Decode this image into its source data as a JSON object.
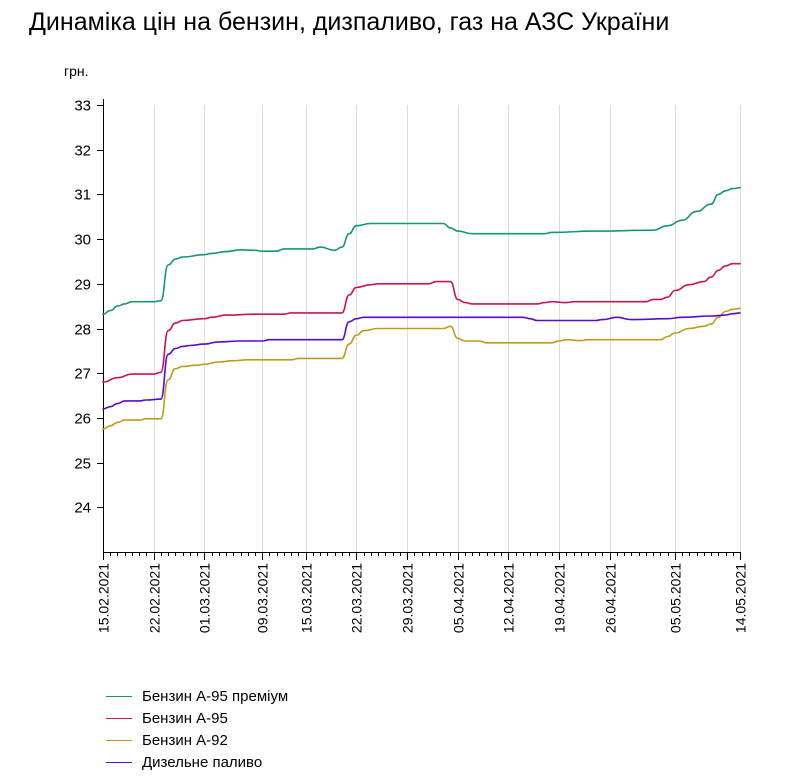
{
  "title": "Динаміка цін на бензин, дизпаливо, газ на АЗС України",
  "chart_data": {
    "type": "line",
    "title": "Динаміка цін на бензин, дизпаливо, газ на АЗС України",
    "ylabel": "грн.",
    "xlabel": "",
    "ylim": [
      23,
      33
    ],
    "xlim": [
      "2021-02-15",
      "2021-05-14"
    ],
    "yticks": [
      24,
      25,
      26,
      27,
      28,
      29,
      30,
      31,
      32,
      33
    ],
    "xticks": [
      "15.02.2021",
      "22.02.2021",
      "01.03.2021",
      "09.03.2021",
      "15.03.2021",
      "22.03.2021",
      "29.03.2021",
      "05.04.2021",
      "12.04.2021",
      "19.04.2021",
      "26.04.2021",
      "05.05.2021",
      "14.05.2021"
    ],
    "grid": "vertical",
    "legend": "bottom-left",
    "series": [
      {
        "name": "Бензин А-95 преміум",
        "color": "#14967a",
        "points": [
          [
            "2021-02-15",
            28.32
          ],
          [
            "2021-02-16",
            28.4
          ],
          [
            "2021-02-17",
            28.5
          ],
          [
            "2021-02-18",
            28.55
          ],
          [
            "2021-02-19",
            28.6
          ],
          [
            "2021-02-22",
            28.6
          ],
          [
            "2021-02-23",
            28.62
          ],
          [
            "2021-02-24",
            29.42
          ],
          [
            "2021-02-25",
            29.55
          ],
          [
            "2021-02-26",
            29.6
          ],
          [
            "2021-03-01",
            29.65
          ],
          [
            "2021-03-02",
            29.68
          ],
          [
            "2021-03-04",
            29.72
          ],
          [
            "2021-03-06",
            29.76
          ],
          [
            "2021-03-08",
            29.75
          ],
          [
            "2021-03-09",
            29.73
          ],
          [
            "2021-03-11",
            29.73
          ],
          [
            "2021-03-12",
            29.78
          ],
          [
            "2021-03-16",
            29.78
          ],
          [
            "2021-03-17",
            29.82
          ],
          [
            "2021-03-19",
            29.75
          ],
          [
            "2021-03-20",
            29.82
          ],
          [
            "2021-03-21",
            30.12
          ],
          [
            "2021-03-22",
            30.3
          ],
          [
            "2021-03-24",
            30.35
          ],
          [
            "2021-04-03",
            30.35
          ],
          [
            "2021-04-04",
            30.25
          ],
          [
            "2021-04-05",
            30.18
          ],
          [
            "2021-04-07",
            30.12
          ],
          [
            "2021-04-17",
            30.12
          ],
          [
            "2021-04-18",
            30.15
          ],
          [
            "2021-04-24",
            30.18
          ],
          [
            "2021-05-02",
            30.2
          ],
          [
            "2021-05-04",
            30.3
          ],
          [
            "2021-05-06",
            30.42
          ],
          [
            "2021-05-08",
            30.62
          ],
          [
            "2021-05-10",
            30.78
          ],
          [
            "2021-05-11",
            31.0
          ],
          [
            "2021-05-12",
            31.08
          ],
          [
            "2021-05-13",
            31.13
          ],
          [
            "2021-05-14",
            31.15
          ]
        ]
      },
      {
        "name": "Бензин А-95",
        "color": "#c8145a",
        "points": [
          [
            "2021-02-15",
            26.8
          ],
          [
            "2021-02-17",
            26.9
          ],
          [
            "2021-02-19",
            26.98
          ],
          [
            "2021-02-22",
            26.98
          ],
          [
            "2021-02-23",
            27.02
          ],
          [
            "2021-02-24",
            27.95
          ],
          [
            "2021-02-25",
            28.12
          ],
          [
            "2021-02-26",
            28.18
          ],
          [
            "2021-03-01",
            28.22
          ],
          [
            "2021-03-02",
            28.25
          ],
          [
            "2021-03-04",
            28.3
          ],
          [
            "2021-03-08",
            28.32
          ],
          [
            "2021-03-12",
            28.32
          ],
          [
            "2021-03-13",
            28.35
          ],
          [
            "2021-03-20",
            28.35
          ],
          [
            "2021-03-21",
            28.75
          ],
          [
            "2021-03-22",
            28.92
          ],
          [
            "2021-03-24",
            28.98
          ],
          [
            "2021-03-25",
            29.0
          ],
          [
            "2021-04-01",
            29.0
          ],
          [
            "2021-04-02",
            29.05
          ],
          [
            "2021-04-04",
            29.05
          ],
          [
            "2021-04-05",
            28.65
          ],
          [
            "2021-04-06",
            28.58
          ],
          [
            "2021-04-07",
            28.55
          ],
          [
            "2021-04-16",
            28.55
          ],
          [
            "2021-04-17",
            28.58
          ],
          [
            "2021-04-18",
            28.6
          ],
          [
            "2021-04-20",
            28.58
          ],
          [
            "2021-04-21",
            28.6
          ],
          [
            "2021-05-01",
            28.6
          ],
          [
            "2021-05-02",
            28.65
          ],
          [
            "2021-05-03",
            28.65
          ],
          [
            "2021-05-04",
            28.7
          ],
          [
            "2021-05-05",
            28.85
          ],
          [
            "2021-05-07",
            28.98
          ],
          [
            "2021-05-09",
            29.05
          ],
          [
            "2021-05-10",
            29.15
          ],
          [
            "2021-05-11",
            29.3
          ],
          [
            "2021-05-12",
            29.4
          ],
          [
            "2021-05-13",
            29.45
          ],
          [
            "2021-05-14",
            29.45
          ]
        ]
      },
      {
        "name": "Бензин А-92",
        "color": "#c09a1c",
        "points": [
          [
            "2021-02-15",
            25.75
          ],
          [
            "2021-02-16",
            25.82
          ],
          [
            "2021-02-17",
            25.9
          ],
          [
            "2021-02-18",
            25.95
          ],
          [
            "2021-02-20",
            25.95
          ],
          [
            "2021-02-21",
            25.98
          ],
          [
            "2021-02-23",
            25.98
          ],
          [
            "2021-02-24",
            26.85
          ],
          [
            "2021-02-25",
            27.1
          ],
          [
            "2021-02-26",
            27.15
          ],
          [
            "2021-02-28",
            27.18
          ],
          [
            "2021-03-01",
            27.2
          ],
          [
            "2021-03-03",
            27.25
          ],
          [
            "2021-03-05",
            27.28
          ],
          [
            "2021-03-07",
            27.3
          ],
          [
            "2021-03-13",
            27.3
          ],
          [
            "2021-03-14",
            27.33
          ],
          [
            "2021-03-20",
            27.33
          ],
          [
            "2021-03-21",
            27.65
          ],
          [
            "2021-03-22",
            27.85
          ],
          [
            "2021-03-23",
            27.95
          ],
          [
            "2021-03-25",
            28.0
          ],
          [
            "2021-04-03",
            28.0
          ],
          [
            "2021-04-04",
            28.05
          ],
          [
            "2021-04-05",
            27.78
          ],
          [
            "2021-04-06",
            27.72
          ],
          [
            "2021-04-08",
            27.72
          ],
          [
            "2021-04-09",
            27.68
          ],
          [
            "2021-04-18",
            27.68
          ],
          [
            "2021-04-19",
            27.72
          ],
          [
            "2021-04-20",
            27.75
          ],
          [
            "2021-04-22",
            27.73
          ],
          [
            "2021-04-23",
            27.75
          ],
          [
            "2021-05-03",
            27.75
          ],
          [
            "2021-05-04",
            27.82
          ],
          [
            "2021-05-05",
            27.9
          ],
          [
            "2021-05-07",
            28.0
          ],
          [
            "2021-05-09",
            28.05
          ],
          [
            "2021-05-10",
            28.1
          ],
          [
            "2021-05-11",
            28.25
          ],
          [
            "2021-05-12",
            28.38
          ],
          [
            "2021-05-13",
            28.43
          ],
          [
            "2021-05-14",
            28.45
          ]
        ]
      },
      {
        "name": "Дизельне паливо",
        "color": "#5a0ac8",
        "points": [
          [
            "2021-02-15",
            26.2
          ],
          [
            "2021-02-16",
            26.25
          ],
          [
            "2021-02-17",
            26.32
          ],
          [
            "2021-02-18",
            26.38
          ],
          [
            "2021-02-20",
            26.38
          ],
          [
            "2021-02-21",
            26.4
          ],
          [
            "2021-02-23",
            26.42
          ],
          [
            "2021-02-24",
            27.42
          ],
          [
            "2021-02-25",
            27.55
          ],
          [
            "2021-02-26",
            27.6
          ],
          [
            "2021-02-27",
            27.62
          ],
          [
            "2021-03-01",
            27.65
          ],
          [
            "2021-03-03",
            27.7
          ],
          [
            "2021-03-06",
            27.72
          ],
          [
            "2021-03-09",
            27.72
          ],
          [
            "2021-03-10",
            27.75
          ],
          [
            "2021-03-20",
            27.75
          ],
          [
            "2021-03-21",
            28.15
          ],
          [
            "2021-03-22",
            28.22
          ],
          [
            "2021-03-23",
            28.25
          ],
          [
            "2021-04-14",
            28.25
          ],
          [
            "2021-04-15",
            28.22
          ],
          [
            "2021-04-16",
            28.18
          ],
          [
            "2021-04-24",
            28.18
          ],
          [
            "2021-04-25",
            28.2
          ],
          [
            "2021-04-27",
            28.25
          ],
          [
            "2021-04-29",
            28.2
          ],
          [
            "2021-05-04",
            28.22
          ],
          [
            "2021-05-06",
            28.25
          ],
          [
            "2021-05-10",
            28.28
          ],
          [
            "2021-05-12",
            28.3
          ],
          [
            "2021-05-13",
            28.33
          ],
          [
            "2021-05-14",
            28.35
          ]
        ]
      }
    ]
  }
}
